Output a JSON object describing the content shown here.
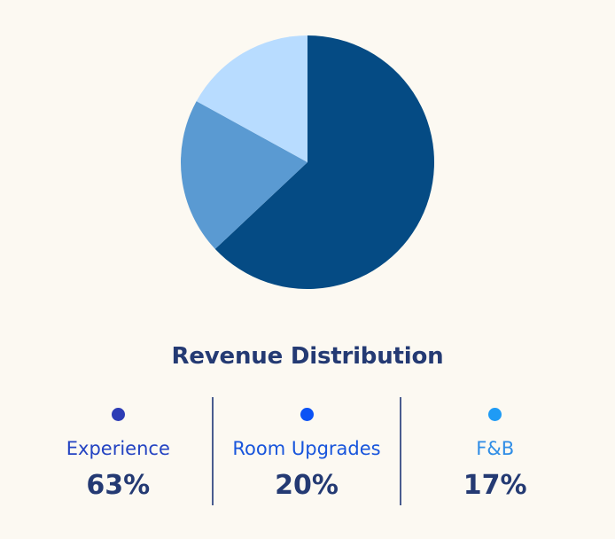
{
  "chart_data": {
    "type": "pie",
    "title": "Revenue Distribution",
    "slices": [
      {
        "label": "Experience",
        "value": 63,
        "display": "63%",
        "color": "#054b84",
        "dot_color": "#2d3db5",
        "label_color": "#2443c2"
      },
      {
        "label": "Room Upgrades",
        "value": 20,
        "display": "20%",
        "color": "#5a9ad2",
        "dot_color": "#0b52f5",
        "label_color": "#1855dc"
      },
      {
        "label": "F&B",
        "value": 17,
        "display": "17%",
        "color": "#b8dcff",
        "dot_color": "#1f9bf5",
        "label_color": "#2f8de6"
      }
    ]
  },
  "legend": {
    "items": [
      {
        "label": "Experience",
        "value": "63%"
      },
      {
        "label": "Room Upgrades",
        "value": "20%"
      },
      {
        "label": "F&B",
        "value": "17%"
      }
    ]
  },
  "colors": {
    "background": "#fcf9f2",
    "title": "#243a73",
    "divider": "#4a5c8f"
  }
}
